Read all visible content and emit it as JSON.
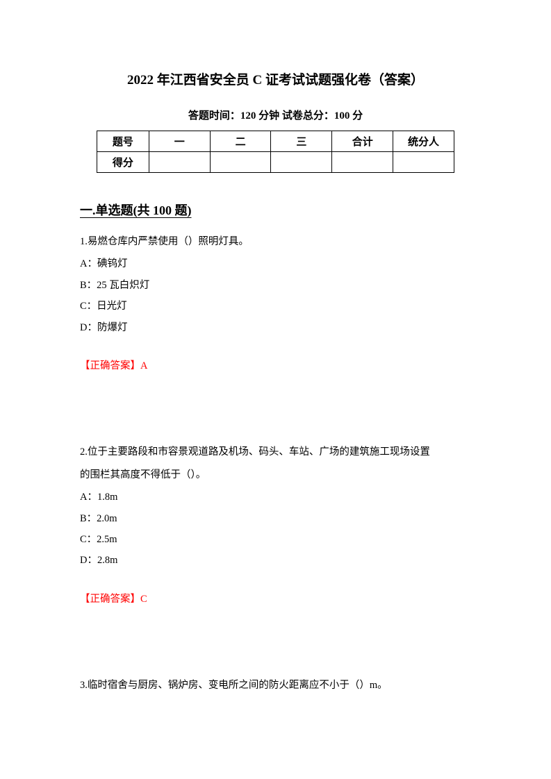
{
  "header": {
    "title": "2022 年江西省安全员 C 证考试试题强化卷（答案）",
    "subtitle": "答题时间：120 分钟    试卷总分：100 分"
  },
  "scoreTable": {
    "row1": {
      "label": "题号",
      "c1": "一",
      "c2": "二",
      "c3": "三",
      "c4": "合计",
      "c5": "统分人"
    },
    "row2": {
      "label": "得分",
      "c1": "",
      "c2": "",
      "c3": "",
      "c4": "",
      "c5": ""
    }
  },
  "section": {
    "heading": "一.单选题(共 100 题)"
  },
  "q1": {
    "text": "1.易燃仓库内严禁使用（）照明灯具。",
    "optA": "A：碘钨灯",
    "optB": "B：25 瓦白炽灯",
    "optC": "C：日光灯",
    "optD": "D：防爆灯",
    "answer": "【正确答案】A"
  },
  "q2": {
    "text1": "2.位于主要路段和市容景观道路及机场、码头、车站、广场的建筑施工现场设置",
    "text2": "的围栏其高度不得低于（）。",
    "optA": "A：1.8m",
    "optB": "B：2.0m",
    "optC": "C：2.5m",
    "optD": "D：2.8m",
    "answer": "【正确答案】C"
  },
  "q3": {
    "text": "3.临时宿舍与厨房、锅炉房、变电所之间的防火距离应不小于（）m。"
  },
  "colors": {
    "text": "#000000",
    "answer": "#ff0000",
    "background": "#ffffff",
    "border": "#000000"
  },
  "fonts": {
    "title_size": 19,
    "subtitle_size": 15,
    "heading_size": 18,
    "body_size": 14.5
  }
}
